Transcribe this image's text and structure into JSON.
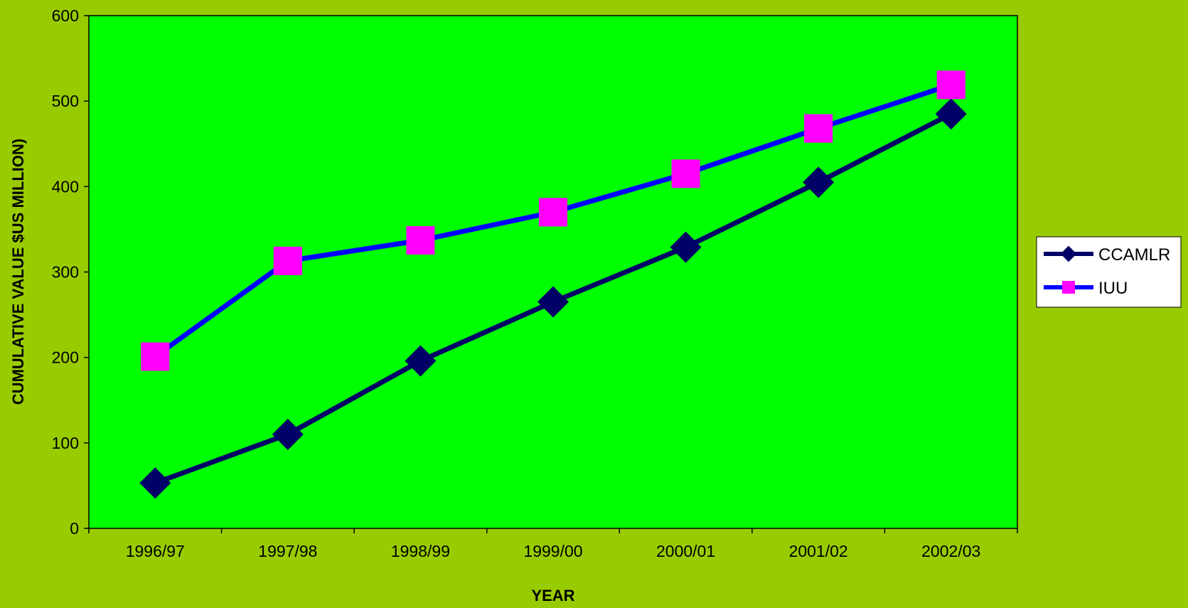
{
  "colors": {
    "page_background": "#99cc00",
    "plot_background": "#00ff00",
    "axis": "#000000",
    "legend_background": "#ffffff"
  },
  "chart_data": {
    "type": "line",
    "title": "",
    "xlabel": "YEAR",
    "ylabel": "CUMULATIVE VALUE $US MILLION)",
    "categories": [
      "1996/97",
      "1997/98",
      "1998/99",
      "1999/00",
      "2000/01",
      "2001/02",
      "2002/03"
    ],
    "ylim": [
      0,
      600
    ],
    "yticks": [
      0,
      100,
      200,
      300,
      400,
      500,
      600
    ],
    "grid": false,
    "legend_position": "right",
    "series": [
      {
        "name": "CCAMLR",
        "values": [
          53,
          110,
          196,
          265,
          329,
          405,
          485
        ],
        "line_color": "#000066",
        "marker": "diamond",
        "marker_color": "#000066"
      },
      {
        "name": "IUU",
        "values": [
          201,
          313,
          337,
          370,
          415,
          468,
          519
        ],
        "line_color": "#0000ff",
        "marker": "square",
        "marker_color": "#ff00ff"
      }
    ]
  }
}
